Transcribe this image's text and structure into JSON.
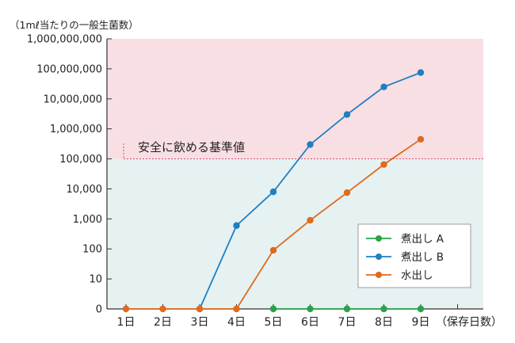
{
  "chart_data": {
    "type": "line",
    "y_unit_label": "（1mℓ当たりの一般生菌数）",
    "x_unit_label": "（保存日数）",
    "categories": [
      "1日",
      "2日",
      "3日",
      "4日",
      "5日",
      "6日",
      "7日",
      "8日",
      "9日"
    ],
    "x": [
      1,
      2,
      3,
      4,
      5,
      6,
      7,
      8,
      9
    ],
    "y_scale": "log",
    "y_ticks": [
      0,
      10,
      100,
      1000,
      10000,
      100000,
      1000000,
      10000000,
      100000000,
      1000000000
    ],
    "y_tick_labels": [
      "0",
      "10",
      "100",
      "1,000",
      "10,000",
      "100,000",
      "1,000,000",
      "10,000,000",
      "100,000,000",
      "1,000,000,000"
    ],
    "ylim": [
      0,
      1000000000
    ],
    "threshold": {
      "value": 100000,
      "label": "安全に飲める基準値"
    },
    "regions": {
      "above_color": "#f8dfe3",
      "below_color": "#e6f1f2"
    },
    "series": [
      {
        "name": "煮出し A",
        "color": "#2aa24a",
        "x": [
          5,
          6,
          7,
          8,
          9
        ],
        "values": [
          0,
          0,
          0,
          0,
          0
        ]
      },
      {
        "name": "煮出し B",
        "color": "#1f7fc0",
        "x": [
          3,
          4,
          5,
          6,
          7,
          8,
          9
        ],
        "values": [
          0,
          600,
          8000,
          300000,
          3000000,
          25000000,
          75000000
        ]
      },
      {
        "name": "水出し",
        "color": "#e06a1c",
        "x": [
          1,
          2,
          3,
          4,
          5,
          6,
          7,
          8,
          9
        ],
        "values": [
          0,
          0,
          0,
          0,
          90,
          900,
          7500,
          65000,
          450000
        ]
      }
    ],
    "legend_position": "right-middle",
    "grid": false
  }
}
